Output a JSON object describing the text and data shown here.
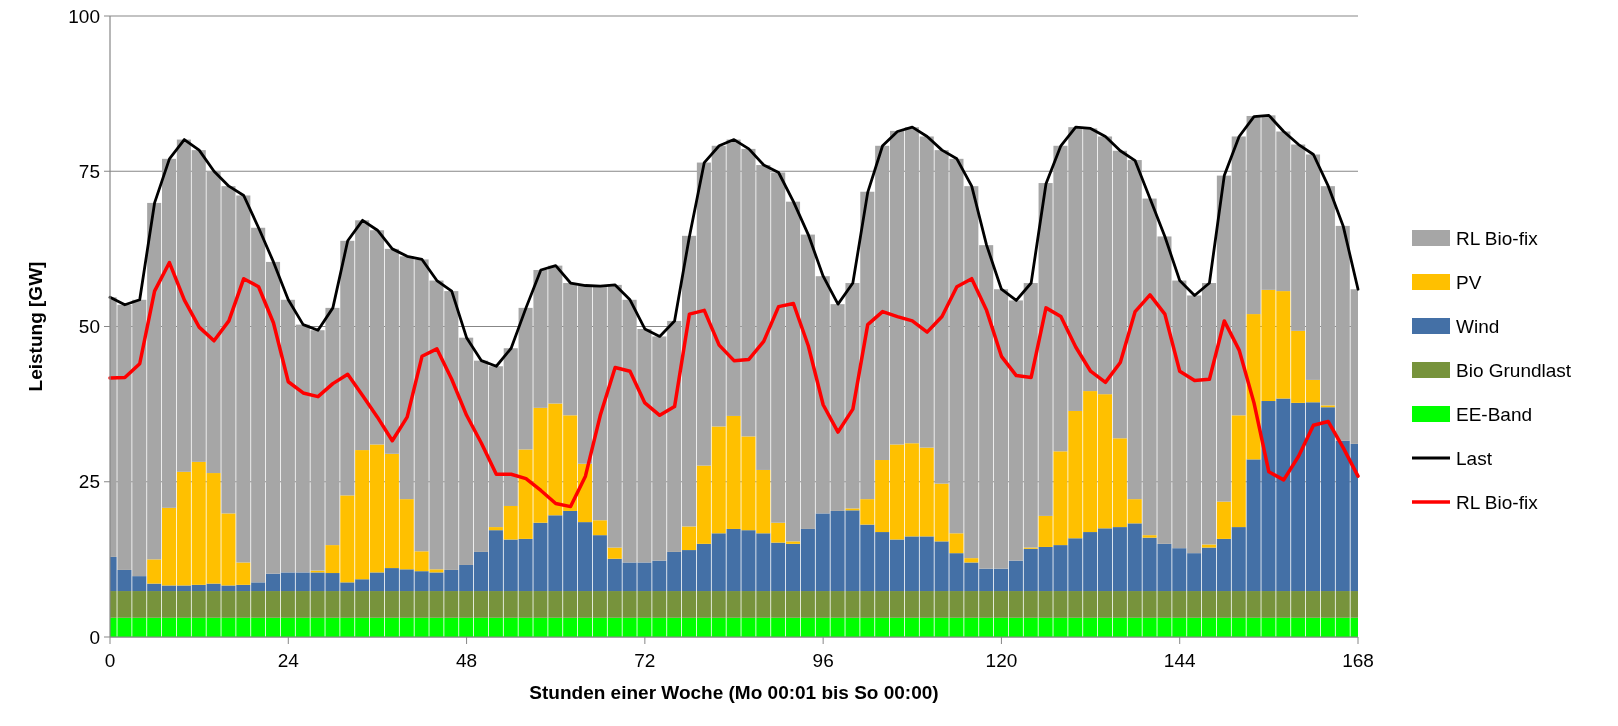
{
  "chart_data": {
    "type": "bar",
    "stacked": true,
    "xlabel": "Stunden einer Woche (Mo 00:01 bis So 00:00)",
    "ylabel": "Leistung [GW]",
    "x": [
      0,
      2,
      4,
      6,
      8,
      10,
      12,
      14,
      16,
      18,
      20,
      22,
      24,
      26,
      28,
      30,
      32,
      34,
      36,
      38,
      40,
      42,
      44,
      46,
      48,
      50,
      52,
      54,
      56,
      58,
      60,
      62,
      64,
      66,
      68,
      70,
      72,
      74,
      76,
      78,
      80,
      82,
      84,
      86,
      88,
      90,
      92,
      94,
      96,
      98,
      100,
      102,
      104,
      106,
      108,
      110,
      112,
      114,
      116,
      118,
      120,
      122,
      124,
      126,
      128,
      130,
      132,
      134,
      136,
      138,
      140,
      142,
      144,
      146,
      148,
      150,
      152,
      154,
      156,
      158,
      160,
      162,
      164,
      166,
      168
    ],
    "xlim": [
      0,
      168
    ],
    "xticks": [
      0,
      24,
      48,
      72,
      96,
      120,
      144,
      168
    ],
    "ylim": [
      0,
      100
    ],
    "yticks": [
      0,
      25,
      50,
      75,
      100
    ],
    "grid": "y",
    "legend": "right",
    "series": [
      {
        "name": "EE-Band",
        "color": "#00ff00",
        "values": [
          3.1,
          3.1,
          3.1,
          3.1,
          3.1,
          3.1,
          3.1,
          3.1,
          3.1,
          3.1,
          3.1,
          3.1,
          3.1,
          3.1,
          3.1,
          3.1,
          3.1,
          3.1,
          3.1,
          3.1,
          3.1,
          3.1,
          3.1,
          3.1,
          3.1,
          3.1,
          3.1,
          3.1,
          3.1,
          3.1,
          3.1,
          3.1,
          3.1,
          3.1,
          3.1,
          3.1,
          3.1,
          3.1,
          3.1,
          3.1,
          3.1,
          3.1,
          3.1,
          3.1,
          3.1,
          3.1,
          3.1,
          3.1,
          3.1,
          3.1,
          3.1,
          3.1,
          3.1,
          3.1,
          3.1,
          3.1,
          3.1,
          3.1,
          3.1,
          3.1,
          3.1,
          3.1,
          3.1,
          3.1,
          3.1,
          3.1,
          3.1,
          3.1,
          3.1,
          3.1,
          3.1,
          3.1,
          3.1,
          3.1,
          3.1,
          3.1,
          3.1,
          3.1,
          3.1,
          3.1,
          3.1,
          3.1,
          3.1,
          3.1,
          3.1
        ]
      },
      {
        "name": "Bio Grundlast",
        "color": "#77933c",
        "values": [
          4.3,
          4.3,
          4.3,
          4.3,
          4.3,
          4.3,
          4.3,
          4.3,
          4.3,
          4.3,
          4.3,
          4.3,
          4.3,
          4.3,
          4.3,
          4.3,
          4.3,
          4.3,
          4.3,
          4.3,
          4.3,
          4.3,
          4.3,
          4.3,
          4.3,
          4.3,
          4.3,
          4.3,
          4.3,
          4.3,
          4.3,
          4.3,
          4.3,
          4.3,
          4.3,
          4.3,
          4.3,
          4.3,
          4.3,
          4.3,
          4.3,
          4.3,
          4.3,
          4.3,
          4.3,
          4.3,
          4.3,
          4.3,
          4.3,
          4.3,
          4.3,
          4.3,
          4.3,
          4.3,
          4.3,
          4.3,
          4.3,
          4.3,
          4.3,
          4.3,
          4.3,
          4.3,
          4.3,
          4.3,
          4.3,
          4.3,
          4.3,
          4.3,
          4.3,
          4.3,
          4.3,
          4.3,
          4.3,
          4.3,
          4.3,
          4.3,
          4.3,
          4.3,
          4.3,
          4.3,
          4.3,
          4.3,
          4.3,
          4.3,
          4.3
        ]
      },
      {
        "name": "Wind",
        "color": "#4470a6",
        "values": [
          5.5,
          3.4,
          2.4,
          1.2,
          0.9,
          0.9,
          1.0,
          1.2,
          0.9,
          1.0,
          1.4,
          2.8,
          3.0,
          3.0,
          3.0,
          2.9,
          1.4,
          1.9,
          3.0,
          3.7,
          3.5,
          3.2,
          3.0,
          3.4,
          4.2,
          6.3,
          9.8,
          8.3,
          8.4,
          11.0,
          12.2,
          12.9,
          11.1,
          9.0,
          5.2,
          4.6,
          4.6,
          4.9,
          6.3,
          6.6,
          7.6,
          9.3,
          10.0,
          9.8,
          9.3,
          7.8,
          7.6,
          10.0,
          12.5,
          12.9,
          13.0,
          10.7,
          9.5,
          8.3,
          8.8,
          8.8,
          8.0,
          6.1,
          4.6,
          3.6,
          3.6,
          4.9,
          6.8,
          7.1,
          7.4,
          8.5,
          9.5,
          10.1,
          10.3,
          10.9,
          8.6,
          7.6,
          6.9,
          6.1,
          7.0,
          8.4,
          10.3,
          21.2,
          30.6,
          31.0,
          30.3,
          30.4,
          29.6,
          24.2,
          23.7
        ]
      },
      {
        "name": "PV",
        "color": "#ffc000",
        "values": [
          0,
          0,
          0,
          3.9,
          12.5,
          18.3,
          19.8,
          17.8,
          11.6,
          3.6,
          0,
          0,
          0,
          0,
          0.3,
          4.5,
          14.0,
          20.8,
          20.6,
          18.4,
          11.3,
          3.2,
          0.5,
          0,
          0,
          0,
          0.5,
          5.4,
          14.4,
          18.5,
          18.0,
          15.4,
          9.4,
          2.4,
          1.8,
          0,
          0,
          0,
          0,
          3.8,
          12.6,
          17.2,
          18.2,
          15.1,
          10.2,
          3.2,
          0.4,
          0,
          0,
          0,
          0.3,
          4.1,
          11.6,
          15.3,
          15.0,
          14.3,
          9.3,
          3.2,
          0.7,
          0,
          0,
          0,
          0.2,
          5.0,
          15.1,
          20.5,
          22.7,
          21.6,
          14.3,
          3.9,
          0.4,
          0,
          0,
          0,
          0.5,
          6.0,
          18.0,
          23.4,
          17.9,
          17.3,
          11.6,
          3.6,
          0.3,
          0,
          0
        ]
      },
      {
        "name": "RL Bio-fix",
        "color": "#a6a6a6",
        "values": [
          41.8,
          42.7,
          44.5,
          57.4,
          56.2,
          53.5,
          50.2,
          48.6,
          52.7,
          59.1,
          57.1,
          50.2,
          43.9,
          39.9,
          38.7,
          38.2,
          41.0,
          37.0,
          34.5,
          33.0,
          39.1,
          47.0,
          46.5,
          44.9,
          36.6,
          30.8,
          25.9,
          25.4,
          22.8,
          22.2,
          22.2,
          21.3,
          28.7,
          37.7,
          42.3,
          42.3,
          37.6,
          36.1,
          37.2,
          46.8,
          48.8,
          45.2,
          44.5,
          46.3,
          49.1,
          56.4,
          54.7,
          47.4,
          38.2,
          33.3,
          36.3,
          49.5,
          50.6,
          50.5,
          50.9,
          50.1,
          53.7,
          60.3,
          59.9,
          52.1,
          45.0,
          41.9,
          42.6,
          53.6,
          49.2,
          45.7,
          42.3,
          41.5,
          46.3,
          54.6,
          54.2,
          49.5,
          43.1,
          41.5,
          42.1,
          52.5,
          44.9,
          31.9,
          28.1,
          25.7,
          30.0,
          36.3,
          35.3,
          34.6,
          24.9
        ]
      },
      {
        "name": "Last",
        "type": "line",
        "color": "#000000",
        "values": [
          54.7,
          53.5,
          54.3,
          69.9,
          77.0,
          80.1,
          78.4,
          75.0,
          72.6,
          71.1,
          65.9,
          60.4,
          54.3,
          50.3,
          49.4,
          53.0,
          63.8,
          67.1,
          65.5,
          62.5,
          61.3,
          60.8,
          57.4,
          55.7,
          48.2,
          44.5,
          43.6,
          46.5,
          53.0,
          59.1,
          59.8,
          57.0,
          56.6,
          56.5,
          56.7,
          54.3,
          49.6,
          48.4,
          50.9,
          64.5,
          76.4,
          79.1,
          80.1,
          78.6,
          76.0,
          74.8,
          70.1,
          64.8,
          58.1,
          53.6,
          57.0,
          71.6,
          79.1,
          81.4,
          82.1,
          80.6,
          78.4,
          77.0,
          72.6,
          63.1,
          56.0,
          54.2,
          57.0,
          73.0,
          79.1,
          82.1,
          81.9,
          80.6,
          78.3,
          76.7,
          70.6,
          64.5,
          57.4,
          55.0,
          57.0,
          74.3,
          80.6,
          83.8,
          84.0,
          81.4,
          79.3,
          77.7,
          72.6,
          66.2,
          56.0
        ]
      },
      {
        "name": "RL Bio-fix",
        "type": "line",
        "color": "#ff0000",
        "values": [
          41.7,
          41.8,
          44.0,
          55.7,
          60.3,
          54.3,
          49.9,
          47.7,
          50.9,
          57.7,
          56.4,
          50.6,
          41.1,
          39.3,
          38.7,
          40.8,
          42.3,
          38.9,
          35.4,
          31.6,
          35.4,
          45.2,
          46.4,
          41.5,
          35.7,
          31.2,
          26.2,
          26.2,
          25.5,
          23.6,
          21.5,
          21.0,
          25.9,
          35.7,
          43.4,
          42.8,
          37.7,
          35.7,
          37.1,
          52.0,
          52.6,
          47.0,
          44.5,
          44.7,
          47.6,
          53.2,
          53.7,
          46.9,
          37.4,
          33.0,
          36.7,
          50.3,
          52.4,
          51.6,
          50.9,
          49.1,
          51.6,
          56.4,
          57.7,
          52.6,
          45.2,
          42.1,
          41.8,
          53.0,
          51.6,
          46.7,
          42.8,
          41.0,
          44.2,
          52.4,
          55.1,
          52.0,
          42.8,
          41.3,
          41.5,
          50.9,
          46.2,
          37.7,
          26.6,
          25.3,
          29.1,
          34.1,
          34.7,
          30.5,
          25.9
        ]
      }
    ]
  }
}
